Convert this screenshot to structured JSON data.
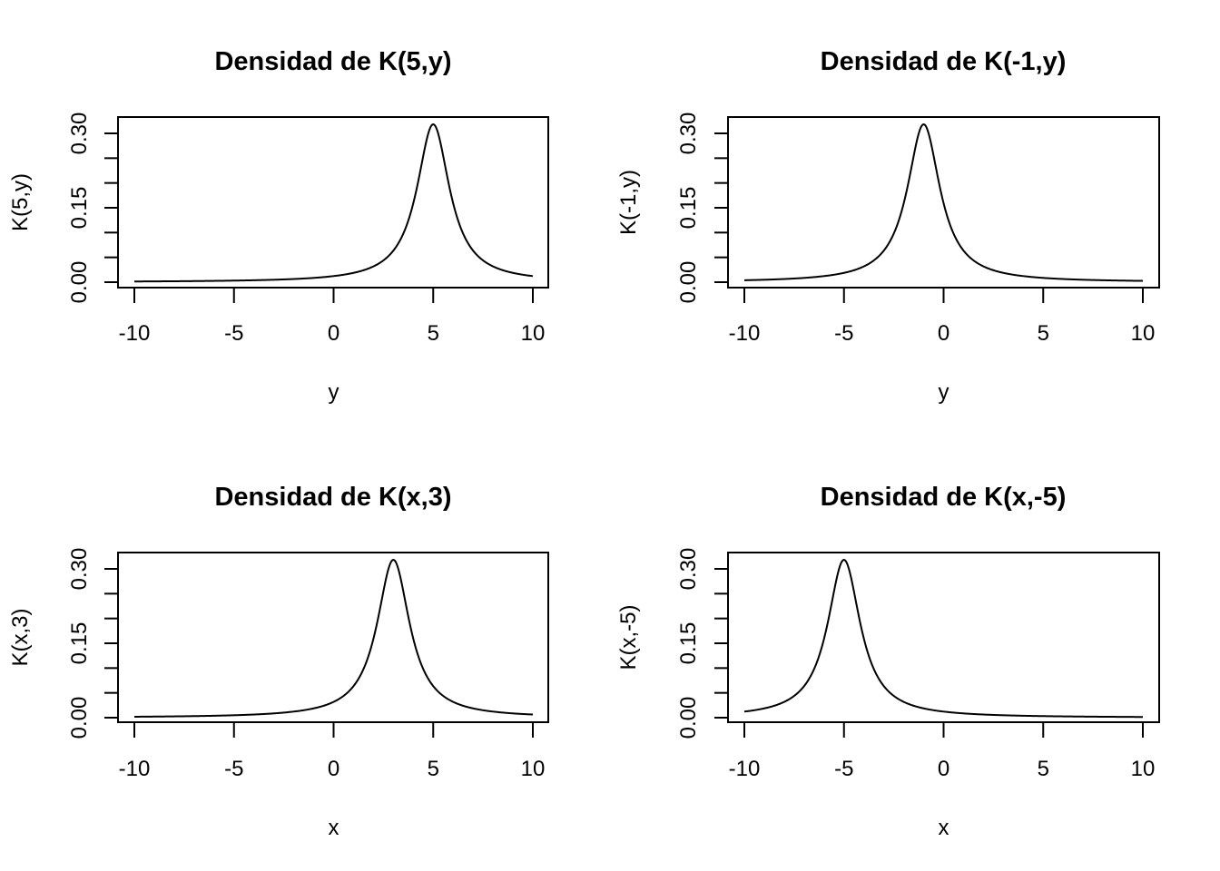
{
  "chart_data": [
    {
      "type": "line",
      "title": "Densidad de K(5,y)",
      "xlabel": "y",
      "ylabel": "K(5,y)",
      "xlim": [
        -10,
        10
      ],
      "ylim": [
        0,
        0.3183
      ],
      "xticks": [
        "-10",
        "-5",
        "0",
        "5",
        "10"
      ],
      "yticks": [
        "0.00",
        "0.15",
        "0.30"
      ],
      "series": [
        {
          "name": "K(5,y)",
          "distribution": "cauchy",
          "location": 5,
          "scale": 1,
          "x_range": [
            -10,
            10
          ],
          "peak": 0.318
        }
      ],
      "grid": false
    },
    {
      "type": "line",
      "title": "Densidad de K(-1,y)",
      "xlabel": "y",
      "ylabel": "K(-1,y)",
      "xlim": [
        -10,
        10
      ],
      "ylim": [
        0,
        0.3183
      ],
      "xticks": [
        "-10",
        "-5",
        "0",
        "5",
        "10"
      ],
      "yticks": [
        "0.00",
        "0.15",
        "0.30"
      ],
      "series": [
        {
          "name": "K(-1,y)",
          "distribution": "cauchy",
          "location": -1,
          "scale": 1,
          "x_range": [
            -10,
            10
          ],
          "peak": 0.318
        }
      ],
      "grid": false
    },
    {
      "type": "line",
      "title": "Densidad de K(x,3)",
      "xlabel": "x",
      "ylabel": "K(x,3)",
      "xlim": [
        -10,
        10
      ],
      "ylim": [
        0,
        0.3183
      ],
      "xticks": [
        "-10",
        "-5",
        "0",
        "5",
        "10"
      ],
      "yticks": [
        "0.00",
        "0.15",
        "0.30"
      ],
      "series": [
        {
          "name": "K(x,3)",
          "distribution": "cauchy",
          "location": 3,
          "scale": 1,
          "x_range": [
            -10,
            10
          ],
          "peak": 0.318
        }
      ],
      "grid": false
    },
    {
      "type": "line",
      "title": "Densidad de K(x,-5)",
      "xlabel": "x",
      "ylabel": "K(x,-5)",
      "xlim": [
        -10,
        10
      ],
      "ylim": [
        0,
        0.3183
      ],
      "xticks": [
        "-10",
        "-5",
        "0",
        "5",
        "10"
      ],
      "yticks": [
        "0.00",
        "0.15",
        "0.30"
      ],
      "series": [
        {
          "name": "K(x,-5)",
          "distribution": "cauchy",
          "location": -5,
          "scale": 1,
          "x_range": [
            -10,
            10
          ],
          "peak": 0.318
        }
      ],
      "grid": false
    }
  ],
  "colors": {
    "line": "#000000",
    "background": "#ffffff"
  }
}
